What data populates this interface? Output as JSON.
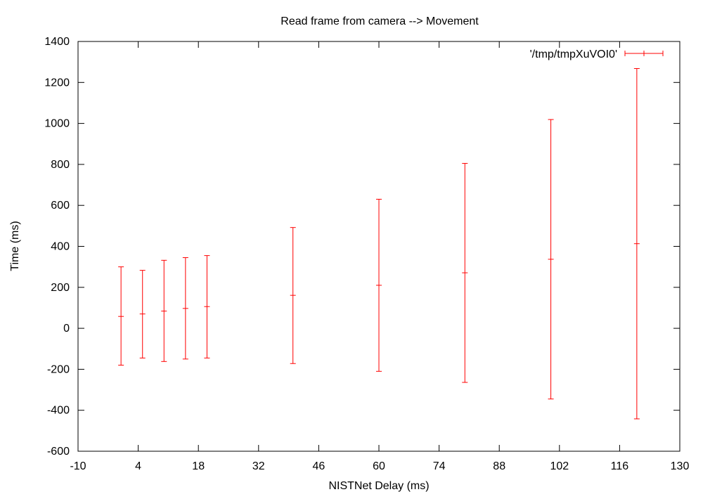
{
  "chart_data": {
    "type": "scatter",
    "title": "Read frame from camera --> Movement",
    "xlabel": "NISTNet Delay (ms)",
    "ylabel": "Time (ms)",
    "xlim": [
      -10,
      130
    ],
    "ylim": [
      -600,
      1400
    ],
    "xticks": [
      -10,
      4,
      18,
      32,
      46,
      60,
      74,
      88,
      102,
      116,
      130
    ],
    "yticks": [
      -600,
      -400,
      -200,
      0,
      200,
      400,
      600,
      800,
      1000,
      1200,
      1400
    ],
    "grid": false,
    "legend_position": "top-right",
    "colors": {
      "series": "#ff0000",
      "axes": "#000000"
    },
    "series": [
      {
        "name": "'/tmp/tmpXuVOI0'",
        "style": "yerrorbars",
        "points": [
          {
            "x": 0,
            "y": 58,
            "ylow": -180,
            "yhigh": 300
          },
          {
            "x": 5,
            "y": 70,
            "ylow": -145,
            "yhigh": 283
          },
          {
            "x": 10,
            "y": 84,
            "ylow": -162,
            "yhigh": 332
          },
          {
            "x": 15,
            "y": 97,
            "ylow": -150,
            "yhigh": 345
          },
          {
            "x": 20,
            "y": 106,
            "ylow": -145,
            "yhigh": 355
          },
          {
            "x": 40,
            "y": 161,
            "ylow": -172,
            "yhigh": 492
          },
          {
            "x": 60,
            "y": 210,
            "ylow": -210,
            "yhigh": 630
          },
          {
            "x": 80,
            "y": 271,
            "ylow": -264,
            "yhigh": 805
          },
          {
            "x": 100,
            "y": 337,
            "ylow": -345,
            "yhigh": 1019
          },
          {
            "x": 120,
            "y": 413,
            "ylow": -442,
            "yhigh": 1268
          }
        ]
      }
    ]
  }
}
